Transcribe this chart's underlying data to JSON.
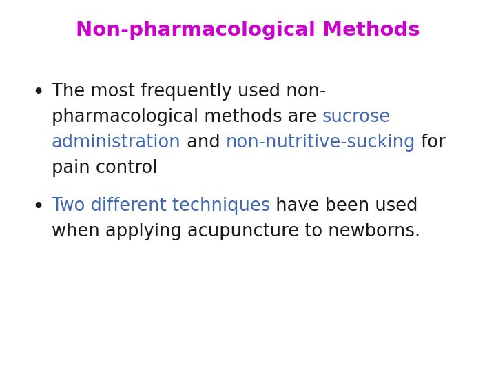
{
  "title": "Non-pharmacological Methods",
  "title_color": "#cc00cc",
  "title_fontsize": 21,
  "background_color": "#ffffff",
  "text_color": "#1a1a1a",
  "highlight_color": "#4169b0",
  "bullet_fontsize": 18.5,
  "figwidth": 7.2,
  "figheight": 5.4,
  "dpi": 100,
  "bullet1_line1": [
    "The most frequently used non-"
  ],
  "bullet1_line1_colors": [
    "#1a1a1a"
  ],
  "bullet1_line2_segs": [
    "pharmacological methods are ",
    "sucrose"
  ],
  "bullet1_line2_colors": [
    "#1a1a1a",
    "#4169b0"
  ],
  "bullet1_line3_segs": [
    "administration",
    " and ",
    "non-nutritive-sucking",
    " for"
  ],
  "bullet1_line3_colors": [
    "#4169b0",
    "#1a1a1a",
    "#4169b0",
    "#1a1a1a"
  ],
  "bullet1_line4_segs": [
    "pain control"
  ],
  "bullet1_line4_colors": [
    "#1a1a1a"
  ],
  "bullet2_line1_segs": [
    "Two different techniques",
    " have been used"
  ],
  "bullet2_line1_colors": [
    "#4169b0",
    "#1a1a1a"
  ],
  "bullet2_line2_segs": [
    "when applying acupuncture to newborns."
  ],
  "bullet2_line2_colors": [
    "#1a1a1a"
  ]
}
